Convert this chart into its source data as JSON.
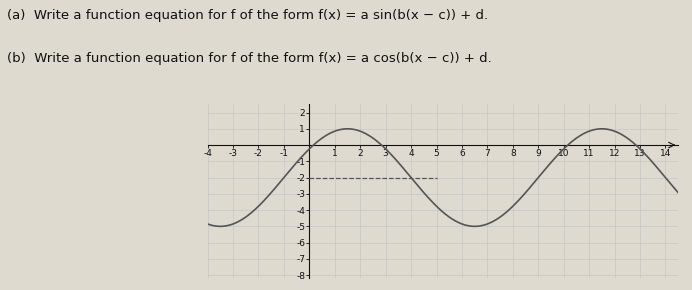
{
  "title_line1": "(a)  Write a function equation for f of the form f(x) = a sin(b(x − c)) + d.",
  "title_line2": "(b)  Write a function equation for f of the form f(x) = a cos(b(x − c)) + d.",
  "xlim": [
    -4,
    14.5
  ],
  "ylim": [
    -8.2,
    2.5
  ],
  "xticks": [
    -4,
    -3,
    -2,
    -1,
    0,
    1,
    2,
    3,
    4,
    5,
    6,
    7,
    8,
    9,
    10,
    11,
    12,
    13,
    14
  ],
  "yticks": [
    -8,
    -7,
    -6,
    -5,
    -4,
    -3,
    -2,
    -1,
    1,
    2
  ],
  "amplitude": 3,
  "midline": -2,
  "period": 10,
  "phase_shift": -1,
  "curve_color": "#555555",
  "grid_color": "#bbbbbb",
  "background_color": "#dedad0",
  "dashed_line_y": -2,
  "dashed_line_x_start": 0,
  "dashed_line_x_end": 5,
  "text_color": "#111111",
  "title_fontsize": 9.5,
  "tick_fontsize": 6.5,
  "figsize": [
    6.92,
    2.9
  ],
  "dpi": 100
}
